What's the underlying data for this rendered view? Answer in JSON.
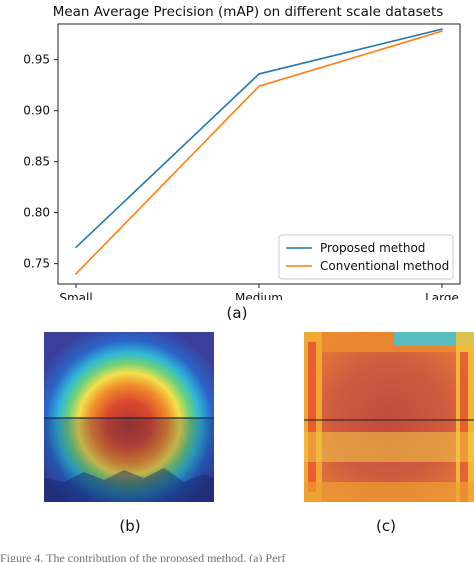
{
  "chart_data": {
    "type": "line",
    "title": "Mean Average Precision (mAP) on different scale datasets",
    "categories": [
      "Small",
      "Medium",
      "Large"
    ],
    "ylim": [
      0.73,
      0.985
    ],
    "yticks": [
      "0.75",
      "0.80",
      "0.85",
      "0.90",
      "0.95"
    ],
    "series": [
      {
        "name": "Proposed method",
        "color": "#1f77b4",
        "values": [
          0.766,
          0.936,
          0.98
        ]
      },
      {
        "name": "Conventional method",
        "color": "#ff7f0e",
        "values": [
          0.74,
          0.924,
          0.978
        ]
      }
    ],
    "legend_position": "lower-right",
    "grid": false
  },
  "labels": {
    "panel_a": "(a)",
    "panel_b": "(b)",
    "panel_c": "(c)"
  },
  "heatmaps": {
    "b": {
      "focus": "center-concentric"
    },
    "c": {
      "focus": "border"
    }
  },
  "caption_fragment": "Figure 4. The contribution of the proposed method. (a) Perf"
}
